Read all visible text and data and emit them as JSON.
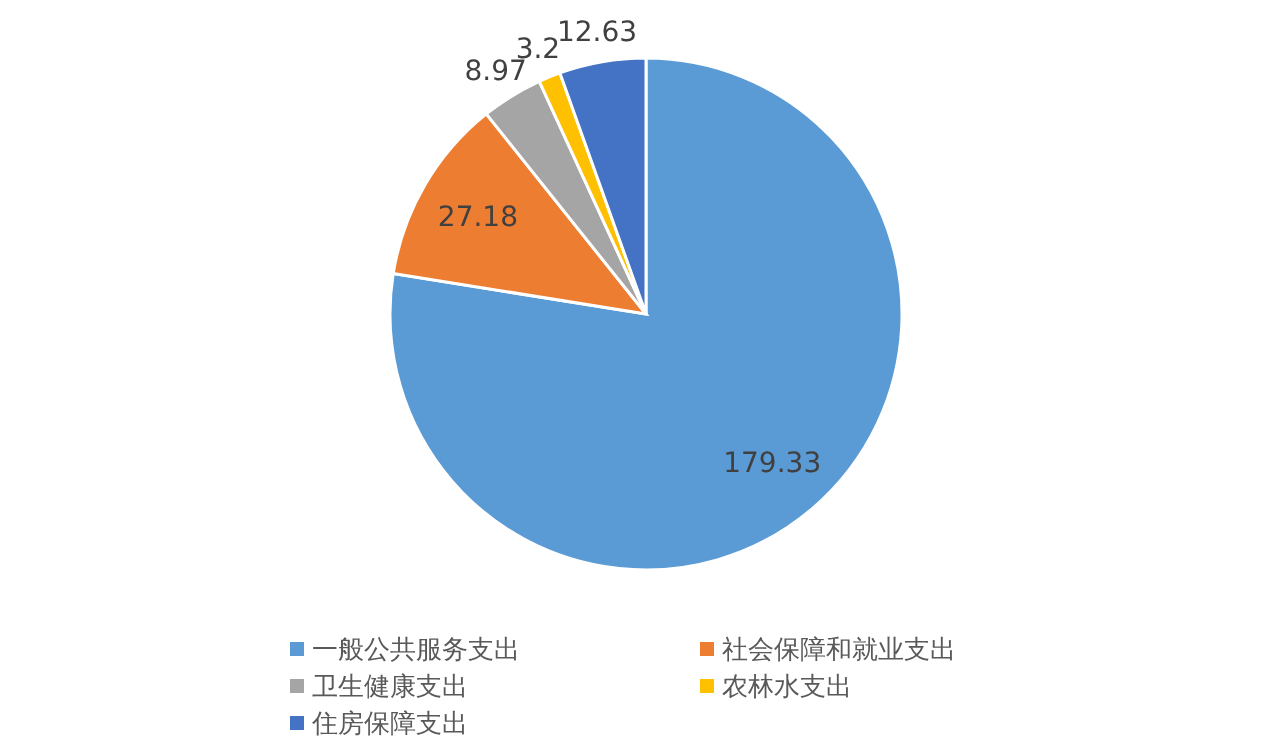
{
  "chart_data": {
    "type": "pie",
    "categories": [
      "一般公共服务支出",
      "社会保障和就业支出",
      "卫生健康支出",
      "农林水支出",
      "住房保障支出"
    ],
    "values": [
      179.33,
      27.18,
      8.97,
      3.2,
      12.63
    ],
    "colors": [
      "#5b9bd5",
      "#ed7d31",
      "#a5a5a5",
      "#ffc000",
      "#4472c4"
    ],
    "data_labels": true,
    "legend": "bottom"
  }
}
